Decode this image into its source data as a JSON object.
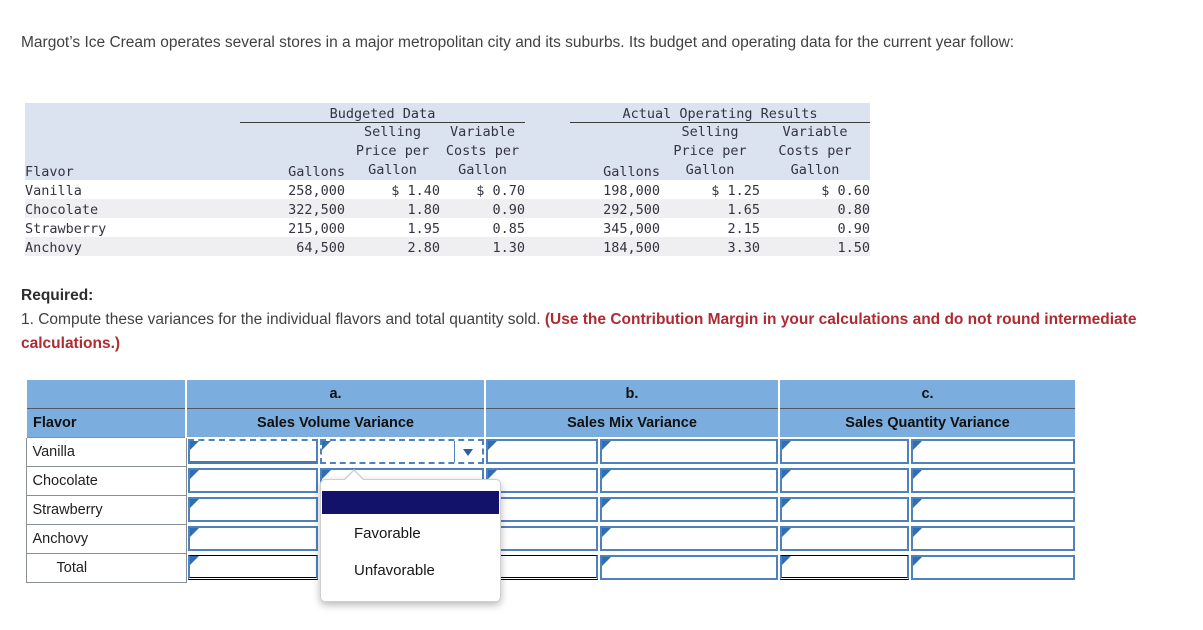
{
  "intro": {
    "text": "Margot’s Ice Cream operates several stores in a major metropolitan city and its suburbs. Its budget and operating data for the current year follow:"
  },
  "data_table": {
    "group1": "Budgeted Data",
    "group2": "Actual Operating Results",
    "headers": {
      "flavor": "Flavor",
      "gallons": "Gallons",
      "selling_price": "Selling\nPrice per\nGallon",
      "variable_costs": "Variable\nCosts per\nGallon"
    },
    "rows": [
      {
        "flavor": "Vanilla",
        "budget_gallons": "258,000",
        "budget_price": "$ 1.40",
        "budget_cost": "$ 0.70",
        "actual_gallons": "198,000",
        "actual_price": "$ 1.25",
        "actual_cost": "$ 0.60"
      },
      {
        "flavor": "Chocolate",
        "budget_gallons": "322,500",
        "budget_price": "1.80",
        "budget_cost": "0.90",
        "actual_gallons": "292,500",
        "actual_price": "1.65",
        "actual_cost": "0.80"
      },
      {
        "flavor": "Strawberry",
        "budget_gallons": "215,000",
        "budget_price": "1.95",
        "budget_cost": "0.85",
        "actual_gallons": "345,000",
        "actual_price": "2.15",
        "actual_cost": "0.90"
      },
      {
        "flavor": "Anchovy",
        "budget_gallons": "64,500",
        "budget_price": "2.80",
        "budget_cost": "1.30",
        "actual_gallons": "184,500",
        "actual_price": "3.30",
        "actual_cost": "1.50"
      }
    ]
  },
  "required": {
    "label": "Required:",
    "instruction": "1. Compute these variances for the individual flavors and total quantity sold. ",
    "emphasis": "(Use the Contribution Margin in your calculations and do not round intermediate calculations.)"
  },
  "answer_table": {
    "col_letters": {
      "a": "a.",
      "b": "b.",
      "c": "c."
    },
    "flavor_header": "Flavor",
    "col_headers": {
      "a": "Sales Volume Variance",
      "b": "Sales Mix Variance",
      "c": "Sales Quantity Variance"
    },
    "row_labels": [
      "Vanilla",
      "Chocolate",
      "Strawberry",
      "Anchovy",
      "Total"
    ]
  },
  "dropdown": {
    "options": [
      "",
      "Favorable",
      "Unfavorable"
    ],
    "highlighted_index": 0
  },
  "colors": {
    "answer_header_bg": "#7badde",
    "input_border": "#4f81bd",
    "flag": "#2f6db5",
    "highlight_bg": "#12126b",
    "emphasis_red": "#b02b31",
    "table_band_bg": "#dce3f0",
    "stripe": "#efeff2"
  }
}
